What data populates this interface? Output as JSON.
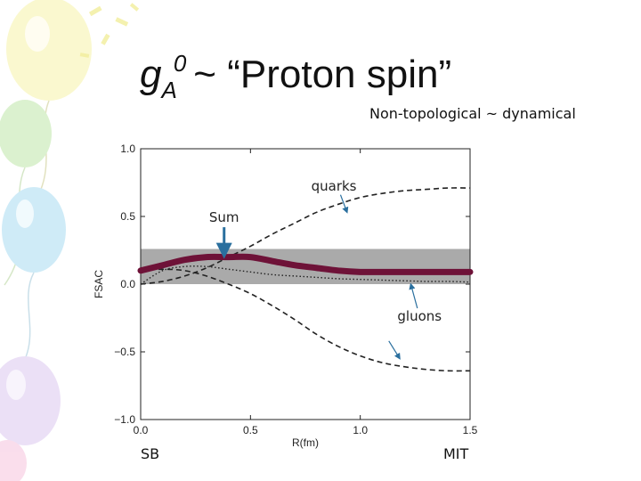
{
  "slide": {
    "title": {
      "symbol": "g",
      "subscript": "A",
      "superscript": "0",
      "rest": "~ “Proton spin”"
    },
    "subtitle": "Non-topological ~ dynamical",
    "left_label": "SB",
    "right_label": "MIT"
  },
  "colors": {
    "sum_curve": "#6e1238",
    "band": "#aaaaaa",
    "arrow": "#2a6f9e",
    "curves": "#222222"
  },
  "chart_data": {
    "type": "line",
    "xlabel": "R(fm)",
    "ylabel": "FSAC",
    "xlim": [
      0.0,
      1.5
    ],
    "ylim": [
      -1.0,
      1.0
    ],
    "xticks": [
      "0.0",
      "0.5",
      "1.0",
      "1.5"
    ],
    "yticks": [
      "1.0",
      "0.5",
      "0.0",
      "−0.5",
      "−1.0"
    ],
    "band": {
      "y_min": 0.0,
      "y_max": 0.26
    },
    "series": [
      {
        "name": "quarks",
        "style": "dashed",
        "x": [
          0.0,
          0.1,
          0.2,
          0.3,
          0.4,
          0.5,
          0.6,
          0.7,
          0.8,
          0.9,
          1.0,
          1.1,
          1.2,
          1.3,
          1.4,
          1.5
        ],
        "y": [
          0.0,
          0.02,
          0.06,
          0.12,
          0.2,
          0.28,
          0.37,
          0.45,
          0.53,
          0.59,
          0.64,
          0.67,
          0.69,
          0.7,
          0.71,
          0.71
        ]
      },
      {
        "name": "gluons",
        "style": "dashed",
        "x": [
          0.0,
          0.1,
          0.2,
          0.3,
          0.4,
          0.5,
          0.6,
          0.7,
          0.8,
          0.9,
          1.0,
          1.1,
          1.2,
          1.3,
          1.4,
          1.5
        ],
        "y": [
          0.1,
          0.11,
          0.1,
          0.06,
          0.0,
          -0.07,
          -0.16,
          -0.26,
          -0.37,
          -0.46,
          -0.53,
          -0.58,
          -0.61,
          -0.63,
          -0.64,
          -0.64
        ]
      },
      {
        "name": "",
        "style": "dotted",
        "x": [
          0.0,
          0.1,
          0.2,
          0.3,
          0.4,
          0.5,
          0.6,
          0.7,
          0.8,
          0.9,
          1.0,
          1.1,
          1.2,
          1.3,
          1.4,
          1.5
        ],
        "y": [
          0.0,
          0.1,
          0.13,
          0.13,
          0.11,
          0.09,
          0.07,
          0.06,
          0.05,
          0.04,
          0.035,
          0.03,
          0.025,
          0.02,
          0.02,
          0.015
        ]
      },
      {
        "name": "Sum",
        "style": "thick",
        "x": [
          0.0,
          0.1,
          0.2,
          0.3,
          0.4,
          0.5,
          0.6,
          0.7,
          0.8,
          0.9,
          1.0,
          1.1,
          1.2,
          1.3,
          1.4,
          1.5
        ],
        "y": [
          0.1,
          0.14,
          0.18,
          0.2,
          0.2,
          0.2,
          0.17,
          0.14,
          0.12,
          0.1,
          0.09,
          0.09,
          0.09,
          0.09,
          0.09,
          0.09
        ]
      }
    ],
    "annotations": [
      {
        "text": "quarks",
        "x": 0.88,
        "y": 0.69,
        "arrow_to": [
          0.94,
          0.53
        ]
      },
      {
        "text": "Sum",
        "x": 0.38,
        "y": 0.46,
        "arrow_to": [
          0.38,
          0.21
        ]
      },
      {
        "text": "gluons",
        "x": 1.27,
        "y": -0.27,
        "arrow_to": [
          1.23,
          0.0
        ]
      },
      {
        "text": "",
        "x": 1.13,
        "y": -0.42,
        "arrow_to": [
          1.18,
          -0.55
        ]
      }
    ]
  }
}
